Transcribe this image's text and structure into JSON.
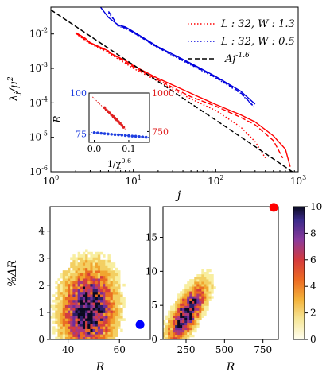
{
  "chart_data": [
    {
      "id": "main",
      "type": "line",
      "x_scale": "log",
      "y_scale": "log",
      "xlim": [
        1,
        1000
      ],
      "ylim": [
        1e-06,
        0.06
      ],
      "xlabel": "j",
      "ylabel": "λj/μ²",
      "x_ticks": [
        1,
        10,
        100,
        1000
      ],
      "x_tick_labels": [
        "10^0",
        "10^1",
        "10^2",
        "10^3"
      ],
      "y_ticks": [
        1e-06,
        1e-05,
        0.0001,
        0.001,
        0.01
      ],
      "y_tick_labels": [
        "10^-6",
        "10^-5",
        "10^-4",
        "10^-3",
        "10^-2"
      ],
      "legend_position": "top-right",
      "legend": [
        {
          "label": "L : 32, W : 1.3",
          "color": "#ff0000",
          "style": "dotted"
        },
        {
          "label": "L : 32, W : 0.5",
          "color": "#0000dd",
          "style": "dotted"
        },
        {
          "label": "Aj^-1.6",
          "color": "#000000",
          "style": "dashed"
        }
      ],
      "series": [
        {
          "name": "L : 32, W : 1.3",
          "group": "red",
          "color": "#ff0000",
          "style": "solid",
          "x": [
            2,
            2.6,
            3,
            5,
            5.2,
            8,
            10,
            20,
            30,
            60,
            100,
            200,
            300,
            500,
            700,
            800
          ],
          "y": [
            0.011,
            0.0075,
            0.0056,
            0.0032,
            0.0028,
            0.00168,
            0.0012,
            0.00051,
            0.00033,
            0.000155,
            9e-05,
            4.5e-05,
            2.8e-05,
            1.1e-05,
            4.5e-06,
            1.4e-06
          ]
        },
        {
          "name": "L : 32, W : 1.3",
          "group": "red",
          "color": "#ff0000",
          "style": "dashed",
          "x": [
            2,
            3,
            5,
            10,
            20,
            50,
            100,
            200,
            300,
            500,
            650
          ],
          "y": [
            0.0105,
            0.0054,
            0.003,
            0.0011,
            0.00046,
            0.00015,
            8e-05,
            3.8e-05,
            2.3e-05,
            8e-06,
            2.5e-06
          ]
        },
        {
          "name": "L : 32, W : 1.3",
          "group": "red",
          "color": "#ff0000",
          "style": "dotted",
          "x": [
            2,
            3,
            5,
            10,
            20,
            50,
            100,
            200,
            300,
            400
          ],
          "y": [
            0.0102,
            0.0052,
            0.0028,
            0.001,
            0.00042,
            0.00013,
            6e-05,
            2e-05,
            7.5e-06,
            2.5e-06
          ]
        },
        {
          "name": "L : 32, W : 0.5",
          "group": "blue",
          "color": "#0000dd",
          "style": "solid",
          "x": [
            4,
            5,
            6.5,
            8,
            10,
            20,
            50,
            100,
            200,
            300
          ],
          "y": [
            0.06,
            0.03,
            0.0185,
            0.016,
            0.0117,
            0.0042,
            0.0014,
            0.00058,
            0.00022,
            9.2e-05
          ]
        },
        {
          "name": "L : 32, W : 0.5",
          "group": "blue",
          "color": "#0000dd",
          "style": "dashed",
          "x": [
            5,
            6.5,
            8,
            10,
            20,
            50,
            100,
            200,
            280
          ],
          "y": [
            0.045,
            0.0175,
            0.015,
            0.011,
            0.004,
            0.0013,
            0.00055,
            0.0002,
            8.5e-05
          ]
        },
        {
          "name": "L : 32, W : 0.5",
          "group": "blue",
          "color": "#0000dd",
          "style": "dotted",
          "x": [
            5,
            6.5,
            8,
            10,
            20,
            50,
            100,
            200,
            300
          ],
          "y": [
            0.042,
            0.017,
            0.0145,
            0.0108,
            0.0039,
            0.00125,
            0.00053,
            0.00019,
            7e-05
          ]
        },
        {
          "name": "Aj^-1.6",
          "group": "black",
          "color": "#000000",
          "style": "dashed",
          "power_law": {
            "A": 0.05,
            "exponent": -1.6
          },
          "x": [
            1,
            10,
            100,
            850
          ],
          "y": [
            0.05,
            0.00126,
            3.15e-05,
            1e-06
          ]
        }
      ]
    },
    {
      "id": "inset",
      "type": "scatter",
      "xlabel": "1/χ^0.6",
      "ylabel": "R",
      "xlim": [
        -0.015,
        0.16
      ],
      "x_ticks": [
        0.0,
        0.1
      ],
      "x_tick_labels": [
        "0.0",
        "0.1"
      ],
      "left_axis": {
        "color": "#1f3fe0",
        "ylim": [
          70,
          100
        ],
        "ticks": [
          75,
          100
        ]
      },
      "right_axis": {
        "color": "#e02020",
        "ylim": [
          680,
          1000
        ],
        "ticks": [
          750,
          1000
        ]
      },
      "series": [
        {
          "name": "blue",
          "axis": "left",
          "color": "#1f3fe0",
          "points": [
            [
              0.0,
              75.9
            ],
            [
              0.01,
              75.7
            ],
            [
              0.02,
              75.5
            ],
            [
              0.03,
              75.3
            ],
            [
              0.04,
              75.1
            ],
            [
              0.05,
              74.9
            ],
            [
              0.06,
              74.7
            ],
            [
              0.07,
              74.6
            ],
            [
              0.08,
              74.4
            ],
            [
              0.09,
              74.2
            ],
            [
              0.1,
              74.0
            ],
            [
              0.11,
              73.8
            ],
            [
              0.12,
              73.7
            ],
            [
              0.13,
              73.5
            ],
            [
              0.14,
              73.3
            ],
            [
              0.15,
              73.1
            ]
          ],
          "fit": {
            "x": [
              -0.01,
              0.16
            ],
            "y": [
              76.1,
              73.0
            ]
          }
        },
        {
          "name": "red",
          "axis": "right",
          "color": "#e02020",
          "points": [
            [
              0.03,
              905
            ],
            [
              0.035,
              890
            ],
            [
              0.04,
              880
            ],
            [
              0.045,
              870
            ],
            [
              0.05,
              858
            ],
            [
              0.055,
              848
            ],
            [
              0.06,
              836
            ],
            [
              0.065,
              826
            ],
            [
              0.07,
              814
            ],
            [
              0.075,
              803
            ],
            [
              0.08,
              790
            ],
            [
              0.085,
              778
            ]
          ],
          "fit": {
            "x": [
              -0.005,
              0.09
            ],
            "y": [
              975,
              765
            ]
          }
        }
      ]
    },
    {
      "id": "hist-left",
      "type": "heatmap",
      "xlabel": "R",
      "ylabel": "%ΔR",
      "xlim": [
        33,
        72
      ],
      "ylim": [
        0,
        4.9
      ],
      "x_ticks": [
        40,
        60
      ],
      "y_ticks": [
        0,
        1,
        2,
        3,
        4
      ],
      "peak": {
        "x": 48,
        "y": 1.1
      },
      "marker": {
        "x": 68,
        "y": 0.55,
        "color": "#0000ff"
      }
    },
    {
      "id": "hist-right",
      "type": "heatmap",
      "xlabel": "R",
      "xlim": [
        100,
        850
      ],
      "ylim": [
        0,
        19.5
      ],
      "x_ticks": [
        250,
        500,
        750
      ],
      "y_ticks": [
        0,
        5,
        10,
        15
      ],
      "peak": {
        "x": 260,
        "y": 4
      },
      "marker": {
        "x": 820,
        "y": 19.4,
        "color": "#ff0000"
      },
      "colorbar": {
        "range": [
          0,
          10
        ],
        "ticks": [
          0,
          2,
          4,
          6,
          8,
          10
        ],
        "colormap": "CMRmap_r"
      }
    }
  ]
}
